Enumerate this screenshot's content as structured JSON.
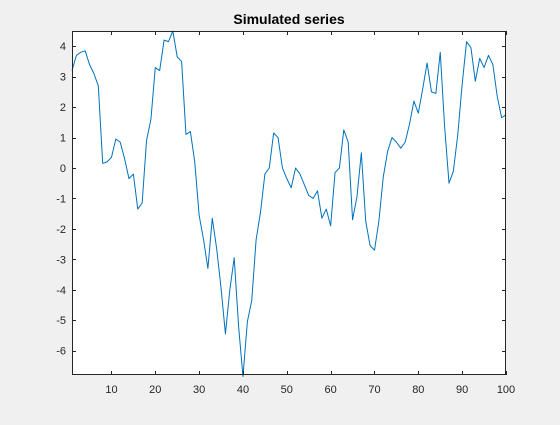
{
  "figure": {
    "background_color": "#f0f0f0"
  },
  "chart_data": {
    "type": "line",
    "title": "Simulated series",
    "xlabel": "",
    "ylabel": "",
    "xlim": [
      1,
      100
    ],
    "ylim": [
      -6.8,
      4.5
    ],
    "xticks": [
      10,
      20,
      30,
      40,
      50,
      60,
      70,
      80,
      90,
      100
    ],
    "yticks": [
      -6,
      -5,
      -4,
      -3,
      -2,
      -1,
      0,
      1,
      2,
      3,
      4
    ],
    "grid": false,
    "legend": "none",
    "axes_color": "#262626",
    "plot_background": "#ffffff",
    "series": [
      {
        "color": "#0072bd",
        "x": [
          1,
          2,
          3,
          4,
          5,
          6,
          7,
          8,
          9,
          10,
          11,
          12,
          13,
          14,
          15,
          16,
          17,
          18,
          19,
          20,
          21,
          22,
          23,
          24,
          25,
          26,
          27,
          28,
          29,
          30,
          31,
          32,
          33,
          34,
          35,
          36,
          37,
          38,
          39,
          40,
          41,
          42,
          43,
          44,
          45,
          46,
          47,
          48,
          49,
          50,
          51,
          52,
          53,
          54,
          55,
          56,
          57,
          58,
          59,
          60,
          61,
          62,
          63,
          64,
          65,
          66,
          67,
          68,
          69,
          70,
          71,
          72,
          73,
          74,
          75,
          76,
          77,
          78,
          79,
          80,
          81,
          82,
          83,
          84,
          85,
          86,
          87,
          88,
          89,
          90,
          91,
          92,
          93,
          94,
          95,
          96,
          97,
          98,
          99,
          100
        ],
        "y": [
          3.2,
          3.7,
          3.8,
          3.85,
          3.4,
          3.1,
          2.7,
          0.15,
          0.2,
          0.35,
          0.95,
          0.85,
          0.3,
          -0.35,
          -0.2,
          -1.35,
          -1.15,
          0.9,
          1.6,
          3.3,
          3.2,
          4.2,
          4.15,
          4.5,
          3.65,
          3.5,
          1.1,
          1.2,
          0.2,
          -1.55,
          -2.35,
          -3.3,
          -1.65,
          -2.65,
          -3.95,
          -5.45,
          -4.0,
          -2.95,
          -5.2,
          -6.85,
          -5.05,
          -4.35,
          -2.35,
          -1.45,
          -0.2,
          0.0,
          1.15,
          1.0,
          0.0,
          -0.35,
          -0.65,
          0.0,
          -0.2,
          -0.55,
          -0.9,
          -1.0,
          -0.75,
          -1.65,
          -1.35,
          -1.9,
          -0.15,
          0.0,
          1.25,
          0.85,
          -1.7,
          -0.95,
          0.5,
          -1.75,
          -2.55,
          -2.7,
          -1.75,
          -0.3,
          0.55,
          1.0,
          0.85,
          0.65,
          0.85,
          1.45,
          2.2,
          1.8,
          2.6,
          3.45,
          2.5,
          2.45,
          3.8,
          1.35,
          -0.5,
          -0.1,
          1.1,
          2.75,
          4.15,
          3.95,
          2.85,
          3.6,
          3.3,
          3.7,
          3.4,
          2.35,
          1.65,
          1.75
        ]
      }
    ]
  }
}
